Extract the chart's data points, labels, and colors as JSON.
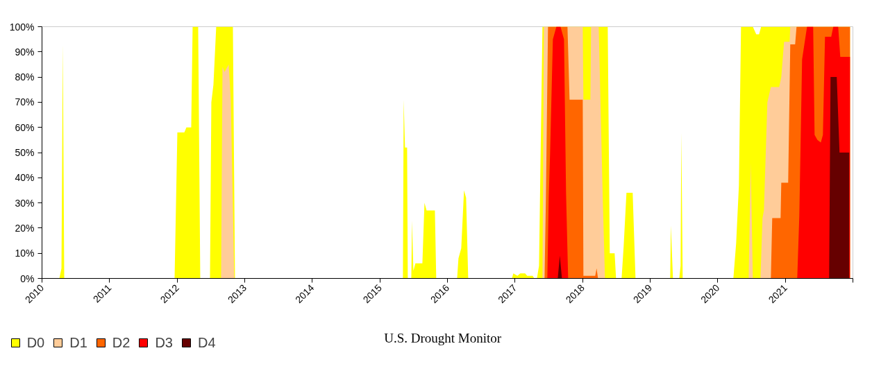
{
  "chart_data": {
    "type": "area",
    "annotations": [
      "U.S. Drought Monitor"
    ],
    "xlim": [
      2010,
      2022
    ],
    "ylim": [
      0,
      100
    ],
    "xticks": [
      2010,
      2011,
      2012,
      2013,
      2014,
      2015,
      2016,
      2017,
      2018,
      2019,
      2020,
      2021,
      {
        "value": 2022,
        "label": null
      }
    ],
    "yticks": [
      {
        "value": 0,
        "label": "0%"
      },
      {
        "value": 10,
        "label": "10%"
      },
      {
        "value": 20,
        "label": "20%"
      },
      {
        "value": 30,
        "label": "30%"
      },
      {
        "value": 40,
        "label": "40%"
      },
      {
        "value": 50,
        "label": "50%"
      },
      {
        "value": 60,
        "label": "60%"
      },
      {
        "value": 70,
        "label": "70%"
      },
      {
        "value": 80,
        "label": "80%"
      },
      {
        "value": 90,
        "label": "90%"
      },
      {
        "value": 100,
        "label": "100%"
      }
    ],
    "grid": false,
    "legend": "bottom left",
    "series": [
      {
        "name": "D0",
        "color": "#ffff00",
        "x": [
          2010.257,
          2010.288,
          2010.308,
          2010.329,
          2011.962,
          2012.003,
          2012.106,
          2012.137,
          2012.208,
          2012.229,
          2012.311,
          2012.342,
          2012.486,
          2012.506,
          2012.537,
          2012.578,
          2012.825,
          2012.856,
          2015.341,
          2015.352,
          2015.372,
          2015.403,
          2015.413,
          2015.465,
          2015.475,
          2015.496,
          2015.526,
          2015.629,
          2015.66,
          2015.691,
          2015.814,
          2015.834,
          2016.143,
          2016.163,
          2016.204,
          2016.245,
          2016.276,
          2016.307,
          2016.954,
          2016.975,
          2017.036,
          2017.077,
          2017.149,
          2017.18,
          2017.262,
          2017.283,
          2017.324,
          2017.355,
          2017.406,
          2018.372,
          2018.402,
          2018.474,
          2018.495,
          2018.577,
          2018.608,
          2018.649,
          2018.741,
          2018.783,
          2019.296,
          2019.306,
          2019.337,
          2019.43,
          2019.45,
          2019.461,
          2019.481,
          2020.231,
          2020.272,
          2020.313,
          2020.344,
          2020.519,
          2020.57,
          2020.611,
          2020.642,
          2021.957
        ],
        "values": [
          0,
          4,
          93,
          0,
          0,
          58,
          58,
          60,
          60,
          100,
          100,
          0,
          0,
          70,
          77,
          100,
          100,
          0,
          0,
          71,
          52,
          52,
          0,
          0,
          23,
          3,
          6,
          6,
          30,
          27,
          27,
          0,
          0,
          8,
          12,
          35,
          32,
          0,
          0,
          2,
          1,
          2,
          2,
          1,
          1,
          0,
          0,
          5,
          100,
          100,
          10,
          10,
          0,
          0,
          13,
          34,
          34,
          0,
          0,
          21,
          0,
          0,
          5,
          58,
          0,
          0,
          14,
          37,
          100,
          100,
          97,
          97,
          100,
          100
        ]
      },
      {
        "name": "D1",
        "color": "#ffcc99",
        "x": [
          2012.65,
          2012.671,
          2012.702,
          2012.763,
          2012.794,
          2012.845,
          2017.406,
          2017.427,
          2018.002,
          2018.012,
          2018.115,
          2018.125,
          2018.238,
          2018.3,
          2018.331,
          2020.457,
          2020.488,
          2020.519,
          2020.632,
          2020.662,
          2020.683,
          2020.734,
          2020.786,
          2020.909,
          2020.94,
          2020.981,
          2021.063,
          2021.073,
          2021.957
        ],
        "values": [
          0,
          84,
          82,
          85,
          71,
          0,
          0,
          100,
          100,
          71,
          71,
          100,
          100,
          30,
          0,
          0,
          46,
          0,
          0,
          24,
          27,
          70,
          76,
          76,
          80,
          94,
          94,
          100,
          100
        ]
      },
      {
        "name": "D2",
        "color": "#ff6600",
        "x": [
          2017.437,
          2017.457,
          2017.488,
          2017.776,
          2017.807,
          2018.002,
          2018.012,
          2018.187,
          2018.207,
          2018.228,
          2020.786,
          2020.806,
          2020.93,
          2020.94,
          2021.042,
          2021.073,
          2021.145,
          2021.166,
          2021.957
        ],
        "values": [
          0,
          32,
          100,
          100,
          71,
          71,
          1,
          1,
          4,
          0,
          0,
          24,
          24,
          38,
          38,
          93,
          93,
          100,
          100
        ]
      },
      {
        "name": "D3",
        "color": "#ff0000",
        "x": [
          2017.478,
          2017.499,
          2017.519,
          2017.56,
          2017.612,
          2017.673,
          2017.725,
          2017.755,
          2017.786,
          2021.176,
          2021.207,
          2021.248,
          2021.321,
          2021.412,
          2021.433,
          2021.474,
          2021.525,
          2021.556,
          2021.587,
          2021.679,
          2021.71,
          2021.782,
          2021.813,
          2021.957
        ],
        "values": [
          0,
          32,
          50,
          95,
          100,
          100,
          95,
          34,
          0,
          0,
          25,
          87,
          100,
          100,
          57,
          55,
          54,
          57,
          96,
          96,
          100,
          100,
          88,
          88
        ]
      },
      {
        "name": "D4",
        "color": "#660000",
        "x": [
          2017.632,
          2017.663,
          2017.694,
          2021.648,
          2021.669,
          2021.761,
          2021.802,
          2021.946
        ],
        "values": [
          0,
          9,
          0,
          0,
          80,
          80,
          50,
          50
        ]
      }
    ]
  }
}
